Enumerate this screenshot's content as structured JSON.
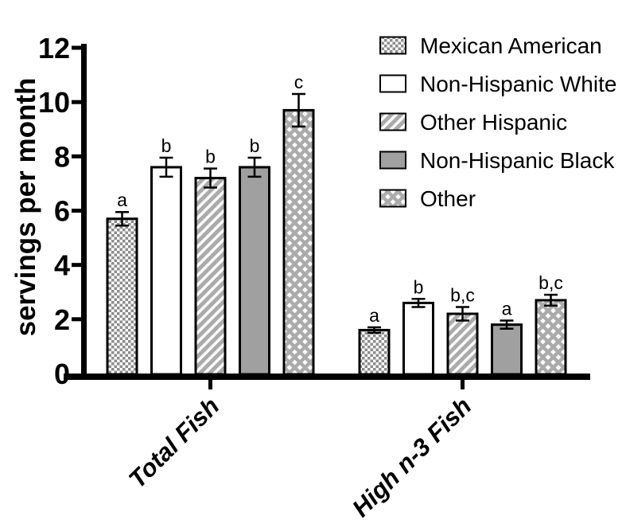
{
  "figure": {
    "background": "#ffffff"
  },
  "chart_data": {
    "type": "bar",
    "title": "",
    "xlabel": "",
    "ylabel": "servings per month",
    "ylim": [
      0,
      12
    ],
    "yticks": [
      0,
      2,
      4,
      6,
      8,
      10,
      12
    ],
    "grid": false,
    "legend_position": "top-right",
    "error_bars": "symmetric",
    "categories": [
      "Total Fish",
      "High n-3 Fish"
    ],
    "series": [
      {
        "name": "Mexican American",
        "pattern": "checker",
        "values": [
          5.7,
          1.6
        ],
        "errors": [
          0.25,
          0.1
        ],
        "sig_labels": [
          "a",
          "a"
        ]
      },
      {
        "name": "Non-Hispanic White",
        "pattern": "plain-white",
        "values": [
          7.6,
          2.6
        ],
        "errors": [
          0.35,
          0.15
        ],
        "sig_labels": [
          "b",
          "b"
        ]
      },
      {
        "name": "Other Hispanic",
        "pattern": "diagonal-hatch",
        "values": [
          7.2,
          2.2
        ],
        "errors": [
          0.35,
          0.25
        ],
        "sig_labels": [
          "b",
          "b,c"
        ]
      },
      {
        "name": "Non-Hispanic Black",
        "pattern": "solid-gray",
        "values": [
          7.6,
          1.8
        ],
        "errors": [
          0.35,
          0.15
        ],
        "sig_labels": [
          "b",
          "a"
        ]
      },
      {
        "name": "Other",
        "pattern": "crosshatch",
        "values": [
          9.7,
          2.7
        ],
        "errors": [
          0.6,
          0.2
        ],
        "sig_labels": [
          "c",
          "b,c"
        ]
      }
    ],
    "colors": {
      "axis": "#000000",
      "text": "#000000",
      "bar_outline": "#000000",
      "solid_gray": "#a0a0a0",
      "hatch_gray": "#ababab",
      "checker_gray": "#8c8c8c",
      "background": "#ffffff"
    }
  }
}
